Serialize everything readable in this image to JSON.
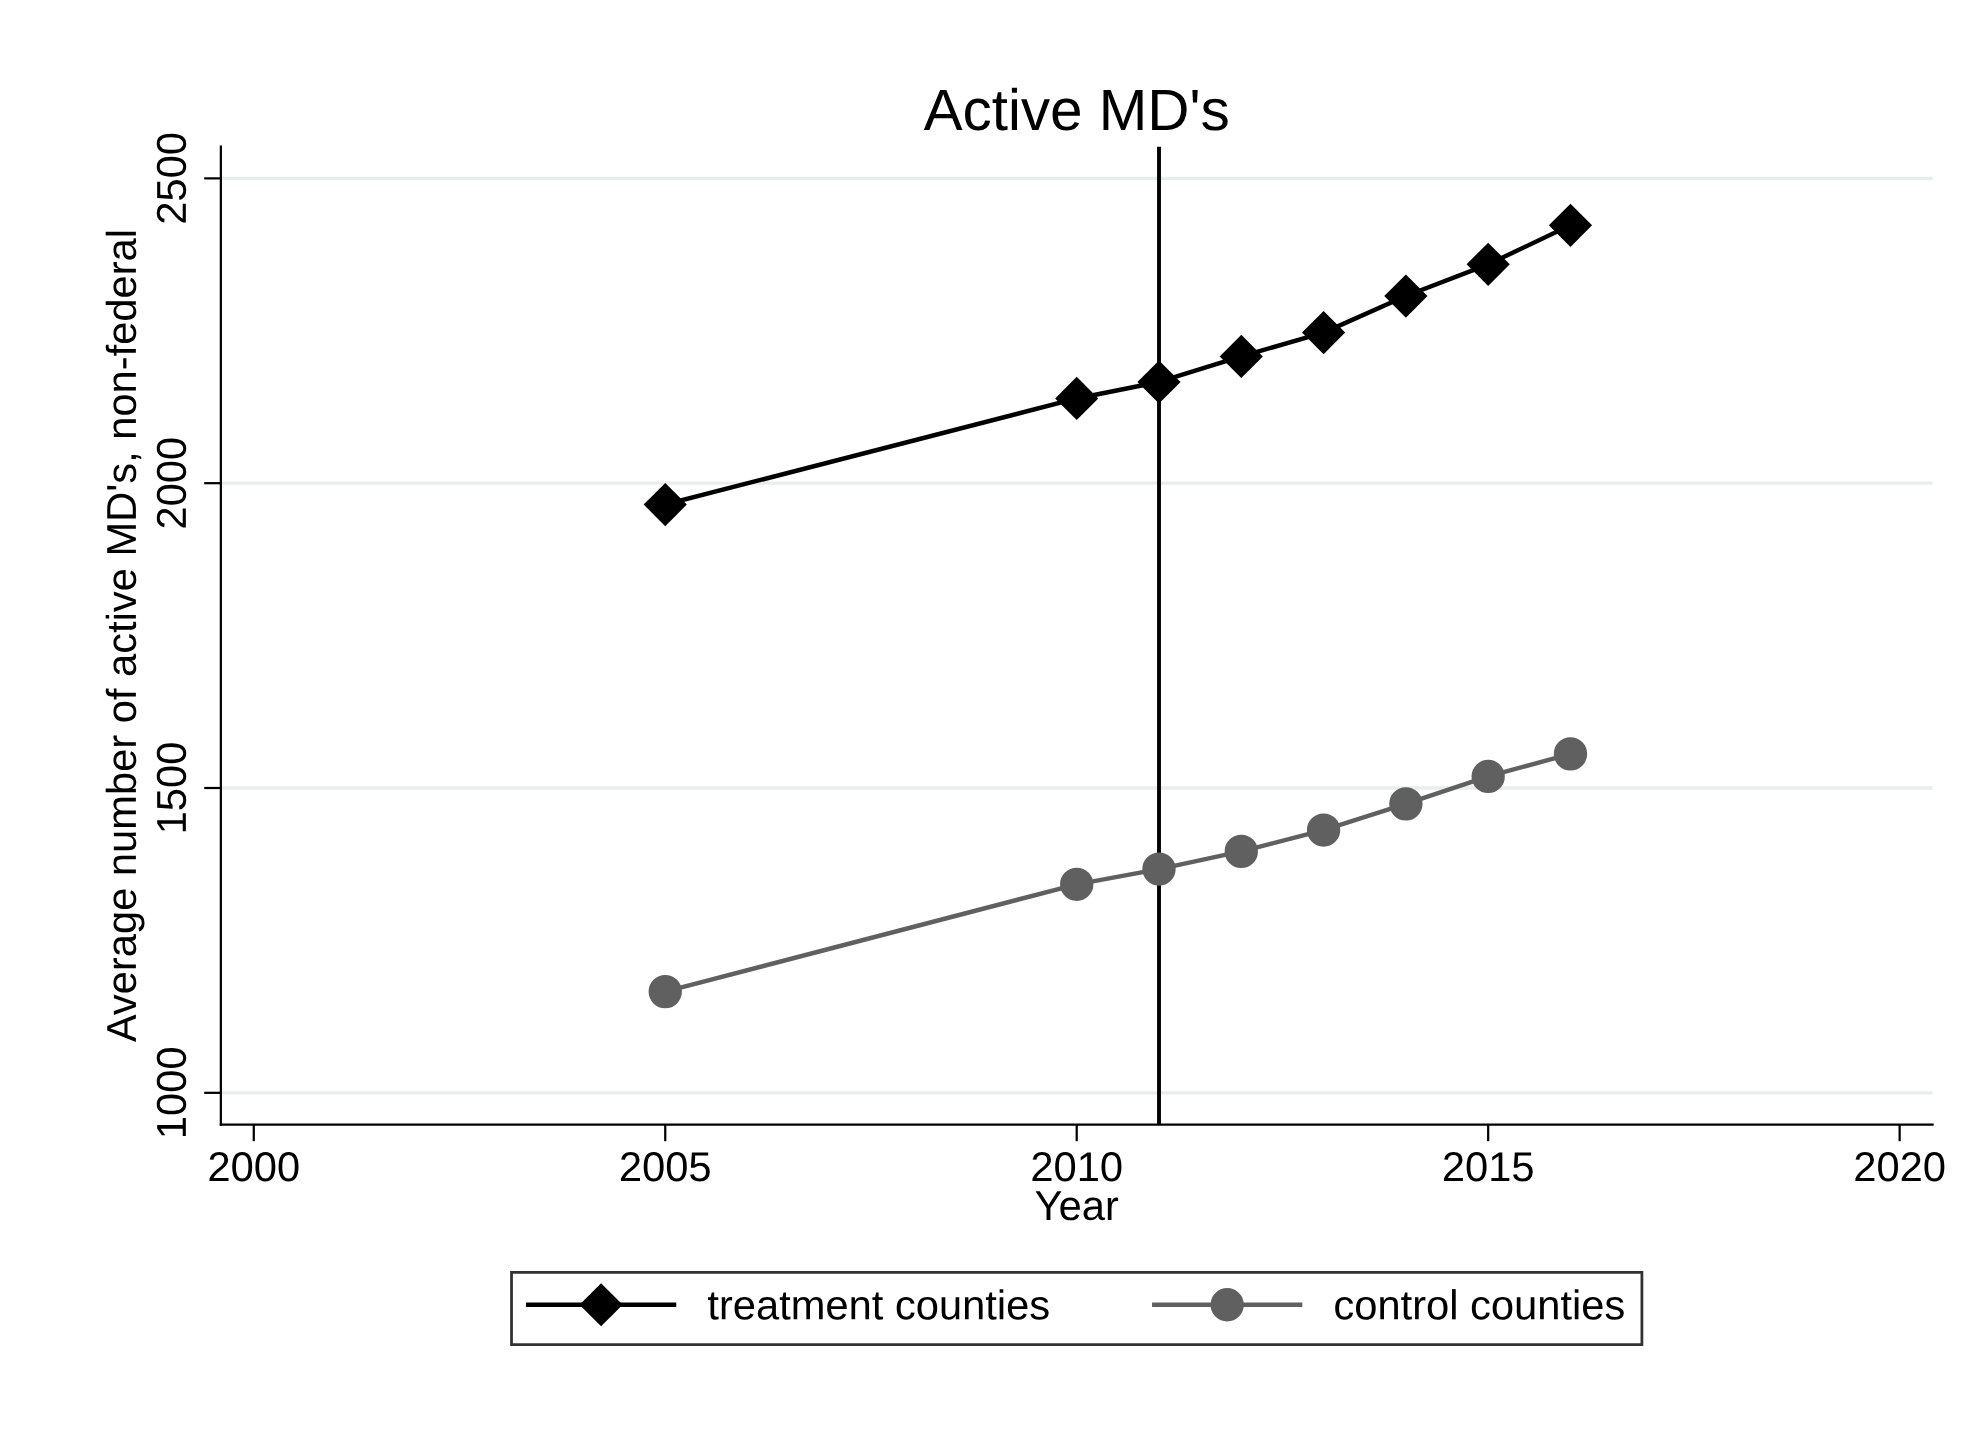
{
  "chart_data": {
    "type": "line",
    "title": "Active MD's",
    "xlabel": "Year",
    "ylabel": "Average number of active MD's, non-federal",
    "x": [
      2005,
      2010,
      2011,
      2012,
      2013,
      2014,
      2015,
      2016
    ],
    "series": [
      {
        "name": "treatment counties",
        "color": "#000000",
        "marker": "diamond",
        "values": [
          1965,
          2139,
          2166,
          2208,
          2247,
          2307,
          2359,
          2423
        ]
      },
      {
        "name": "control counties",
        "color": "#606060",
        "marker": "circle",
        "values": [
          1166,
          1342,
          1367,
          1396,
          1431,
          1474,
          1519,
          1556
        ]
      }
    ],
    "xlim": [
      1999.6,
      2020.4
    ],
    "xticks": [
      2000,
      2005,
      2010,
      2015,
      2020
    ],
    "ylim": [
      948,
      2552
    ],
    "yticks": [
      1000,
      1500,
      2000,
      2500
    ],
    "ref_lines": [
      {
        "axis": "x",
        "value": 2011,
        "color": "#000000"
      }
    ],
    "grid": "y",
    "legend": "bottom"
  }
}
